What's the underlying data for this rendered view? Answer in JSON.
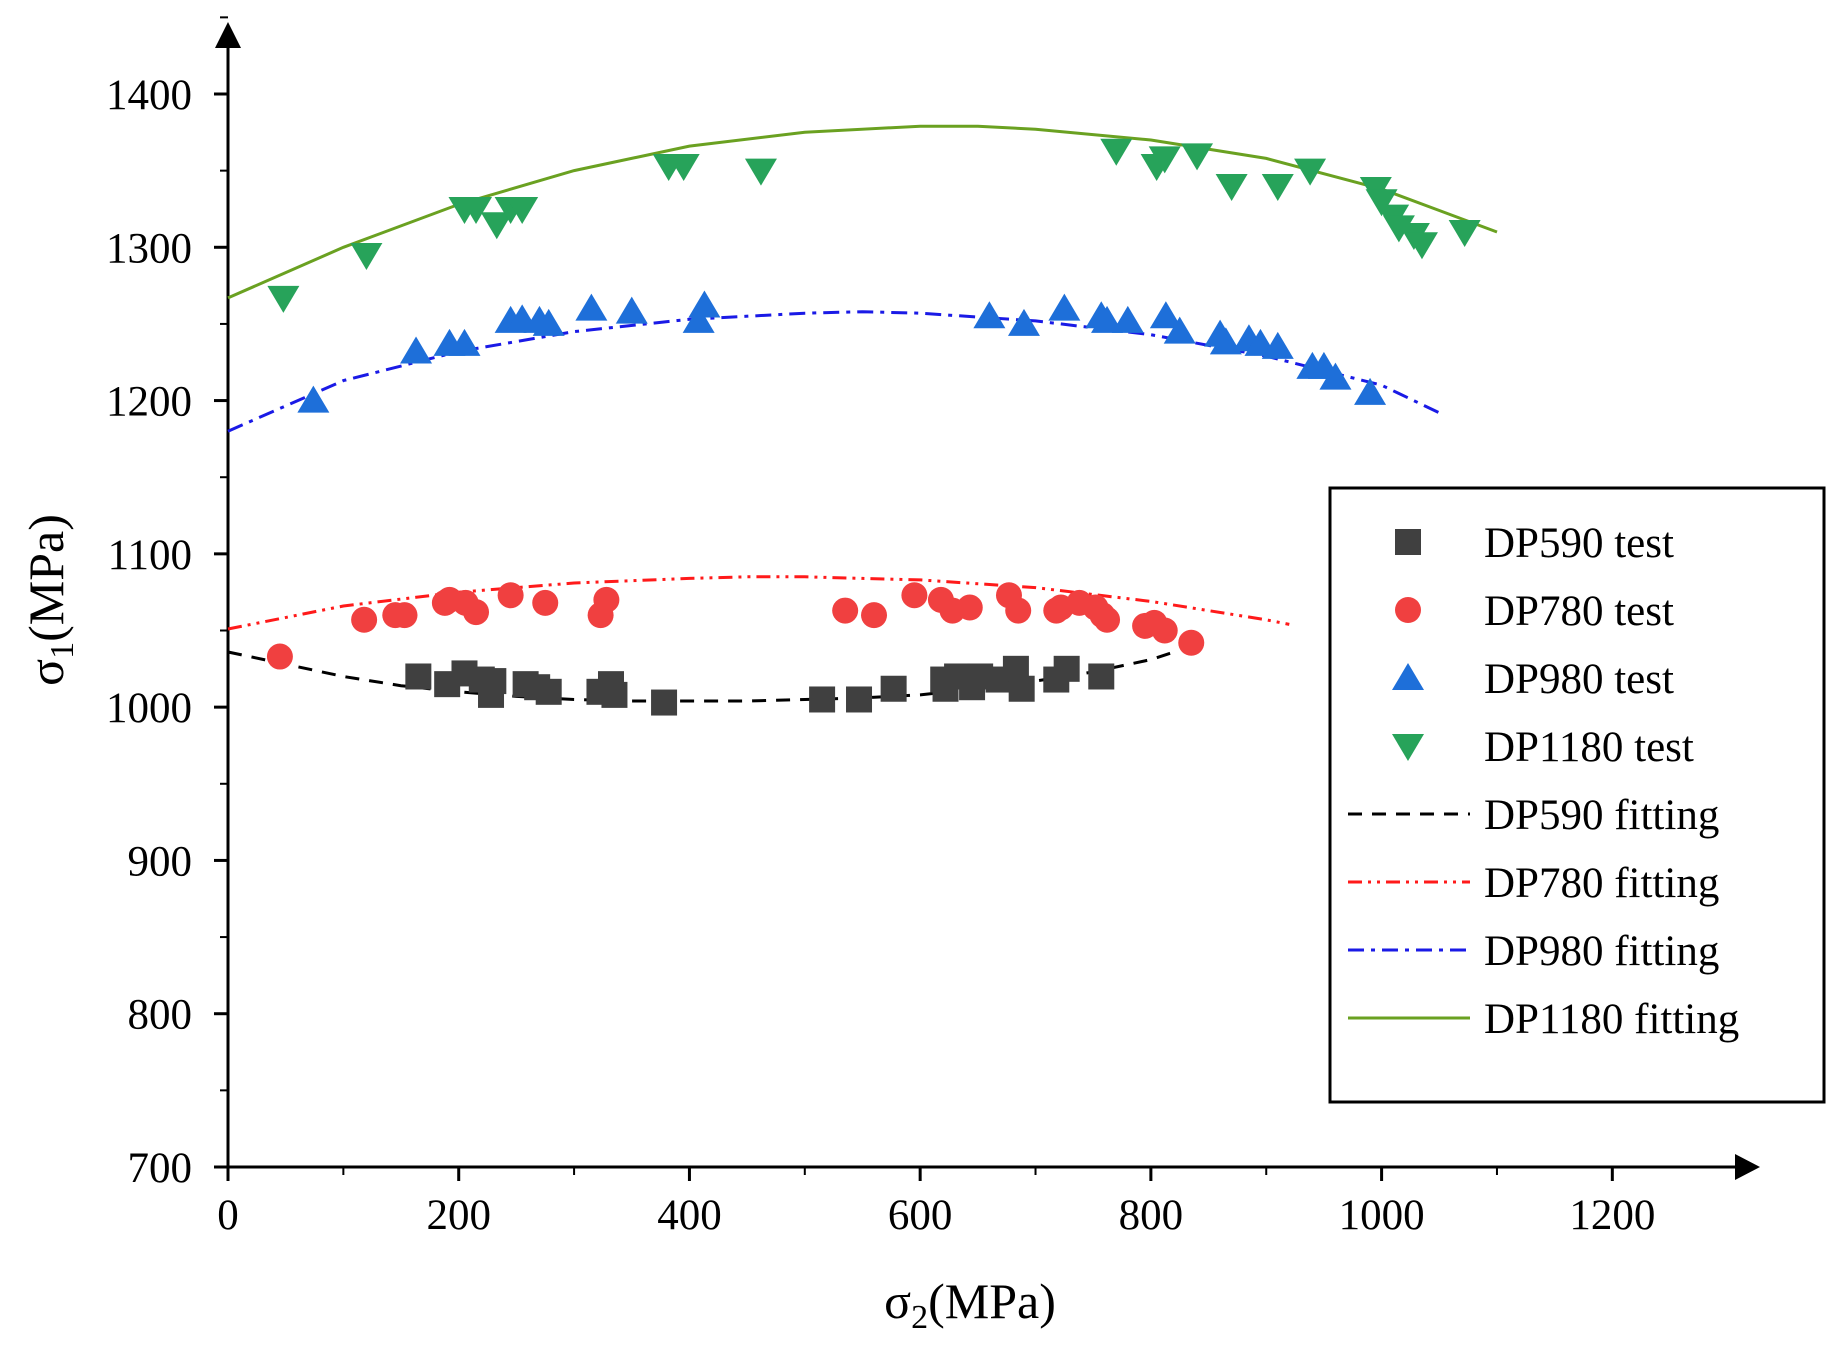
{
  "chart_data": {
    "type": "scatter",
    "title": "",
    "xlabel": {
      "main": "σ",
      "sub": "2",
      "rest": "(MPa)"
    },
    "ylabel": {
      "main": "σ",
      "sub": "1",
      "rest": "(MPa)"
    },
    "xlim": [
      0,
      1250
    ],
    "ylim": [
      700,
      1450
    ],
    "x_ticks": [
      0,
      200,
      400,
      600,
      800,
      1000,
      1200
    ],
    "y_ticks": [
      700,
      800,
      900,
      1000,
      1100,
      1200,
      1300,
      1400
    ],
    "x_tick_labels": [
      "0",
      "200",
      "400",
      "600",
      "800",
      "1000",
      "1200"
    ],
    "y_tick_labels": [
      "700",
      "800",
      "900",
      "1000",
      "1100",
      "1200",
      "1300",
      "1400"
    ],
    "grid": false,
    "legend_position": "right",
    "series": [
      {
        "name": "DP590 test",
        "kind": "scatter",
        "marker": "square",
        "color": "#404040",
        "points": [
          [
            165,
            1020
          ],
          [
            190,
            1015
          ],
          [
            205,
            1022
          ],
          [
            220,
            1018
          ],
          [
            228,
            1008
          ],
          [
            230,
            1017
          ],
          [
            258,
            1015
          ],
          [
            268,
            1013
          ],
          [
            278,
            1010
          ],
          [
            322,
            1010
          ],
          [
            332,
            1015
          ],
          [
            335,
            1008
          ],
          [
            378,
            1003
          ],
          [
            515,
            1005
          ],
          [
            547,
            1005
          ],
          [
            577,
            1012
          ],
          [
            620,
            1018
          ],
          [
            622,
            1012
          ],
          [
            632,
            1020
          ],
          [
            645,
            1013
          ],
          [
            652,
            1020
          ],
          [
            668,
            1018
          ],
          [
            683,
            1025
          ],
          [
            688,
            1012
          ],
          [
            718,
            1018
          ],
          [
            727,
            1025
          ],
          [
            757,
            1020
          ]
        ]
      },
      {
        "name": "DP780 test",
        "kind": "scatter",
        "marker": "circle",
        "color": "#f04040",
        "points": [
          [
            45,
            1033
          ],
          [
            118,
            1057
          ],
          [
            145,
            1060
          ],
          [
            153,
            1060
          ],
          [
            188,
            1068
          ],
          [
            192,
            1070
          ],
          [
            206,
            1068
          ],
          [
            215,
            1062
          ],
          [
            245,
            1073
          ],
          [
            275,
            1068
          ],
          [
            323,
            1060
          ],
          [
            328,
            1070
          ],
          [
            535,
            1063
          ],
          [
            560,
            1060
          ],
          [
            595,
            1073
          ],
          [
            618,
            1070
          ],
          [
            628,
            1063
          ],
          [
            643,
            1065
          ],
          [
            677,
            1073
          ],
          [
            685,
            1063
          ],
          [
            718,
            1063
          ],
          [
            722,
            1065
          ],
          [
            738,
            1068
          ],
          [
            752,
            1065
          ],
          [
            758,
            1060
          ],
          [
            762,
            1057
          ],
          [
            795,
            1053
          ],
          [
            803,
            1055
          ],
          [
            812,
            1050
          ],
          [
            835,
            1042
          ]
        ]
      },
      {
        "name": "DP980 test",
        "kind": "scatter",
        "marker": "triangle-up",
        "color": "#1e6fd9",
        "points": [
          [
            74,
            1200
          ],
          [
            163,
            1232
          ],
          [
            192,
            1237
          ],
          [
            205,
            1237
          ],
          [
            245,
            1252
          ],
          [
            255,
            1253
          ],
          [
            270,
            1252
          ],
          [
            278,
            1250
          ],
          [
            315,
            1260
          ],
          [
            350,
            1258
          ],
          [
            408,
            1252
          ],
          [
            413,
            1262
          ],
          [
            660,
            1255
          ],
          [
            690,
            1250
          ],
          [
            725,
            1260
          ],
          [
            757,
            1255
          ],
          [
            762,
            1252
          ],
          [
            780,
            1252
          ],
          [
            813,
            1255
          ],
          [
            825,
            1245
          ],
          [
            860,
            1243
          ],
          [
            865,
            1238
          ],
          [
            885,
            1240
          ],
          [
            895,
            1237
          ],
          [
            910,
            1235
          ],
          [
            940,
            1222
          ],
          [
            950,
            1222
          ],
          [
            960,
            1215
          ],
          [
            990,
            1205
          ]
        ]
      },
      {
        "name": "DP1180 test",
        "kind": "scatter",
        "marker": "triangle-down",
        "color": "#27a35a",
        "points": [
          [
            48,
            1267
          ],
          [
            120,
            1295
          ],
          [
            205,
            1325
          ],
          [
            215,
            1325
          ],
          [
            233,
            1315
          ],
          [
            245,
            1325
          ],
          [
            255,
            1325
          ],
          [
            382,
            1353
          ],
          [
            395,
            1353
          ],
          [
            462,
            1350
          ],
          [
            770,
            1363
          ],
          [
            805,
            1353
          ],
          [
            812,
            1358
          ],
          [
            840,
            1360
          ],
          [
            870,
            1340
          ],
          [
            910,
            1340
          ],
          [
            938,
            1350
          ],
          [
            995,
            1338
          ],
          [
            1000,
            1330
          ],
          [
            1010,
            1320
          ],
          [
            1015,
            1313
          ],
          [
            1028,
            1308
          ],
          [
            1035,
            1302
          ],
          [
            1072,
            1310
          ]
        ]
      },
      {
        "name": "DP590 fitting",
        "kind": "line",
        "dash": "dash",
        "color": "#000000",
        "points": [
          [
            0,
            1036
          ],
          [
            50,
            1028
          ],
          [
            100,
            1020
          ],
          [
            150,
            1014
          ],
          [
            200,
            1010
          ],
          [
            250,
            1007
          ],
          [
            300,
            1005
          ],
          [
            350,
            1004
          ],
          [
            400,
            1004
          ],
          [
            450,
            1004
          ],
          [
            500,
            1005
          ],
          [
            550,
            1006
          ],
          [
            600,
            1008
          ],
          [
            650,
            1012
          ],
          [
            700,
            1017
          ],
          [
            750,
            1023
          ],
          [
            800,
            1031
          ],
          [
            820,
            1036
          ]
        ]
      },
      {
        "name": "DP780 fitting",
        "kind": "line",
        "dash": "dashdotdot",
        "color": "#ff1a1a",
        "points": [
          [
            0,
            1051
          ],
          [
            100,
            1066
          ],
          [
            200,
            1075
          ],
          [
            300,
            1081
          ],
          [
            400,
            1084
          ],
          [
            450,
            1085
          ],
          [
            500,
            1085
          ],
          [
            550,
            1084
          ],
          [
            600,
            1083
          ],
          [
            700,
            1078
          ],
          [
            800,
            1069
          ],
          [
            900,
            1057
          ],
          [
            920,
            1054
          ]
        ]
      },
      {
        "name": "DP980 fitting",
        "kind": "line",
        "dash": "dashdot",
        "color": "#1a1ae6",
        "points": [
          [
            0,
            1180
          ],
          [
            100,
            1213
          ],
          [
            200,
            1232
          ],
          [
            300,
            1245
          ],
          [
            400,
            1253
          ],
          [
            500,
            1257
          ],
          [
            550,
            1258
          ],
          [
            600,
            1257
          ],
          [
            700,
            1252
          ],
          [
            800,
            1243
          ],
          [
            900,
            1229
          ],
          [
            1000,
            1210
          ],
          [
            1050,
            1192
          ]
        ]
      },
      {
        "name": "DP1180 fitting",
        "kind": "line",
        "dash": "solid",
        "color": "#6aa121",
        "points": [
          [
            0,
            1267
          ],
          [
            100,
            1300
          ],
          [
            200,
            1328
          ],
          [
            300,
            1350
          ],
          [
            400,
            1366
          ],
          [
            500,
            1375
          ],
          [
            600,
            1379
          ],
          [
            650,
            1379
          ],
          [
            700,
            1377
          ],
          [
            800,
            1370
          ],
          [
            900,
            1358
          ],
          [
            1000,
            1338
          ],
          [
            1050,
            1324
          ],
          [
            1100,
            1310
          ]
        ]
      }
    ]
  }
}
